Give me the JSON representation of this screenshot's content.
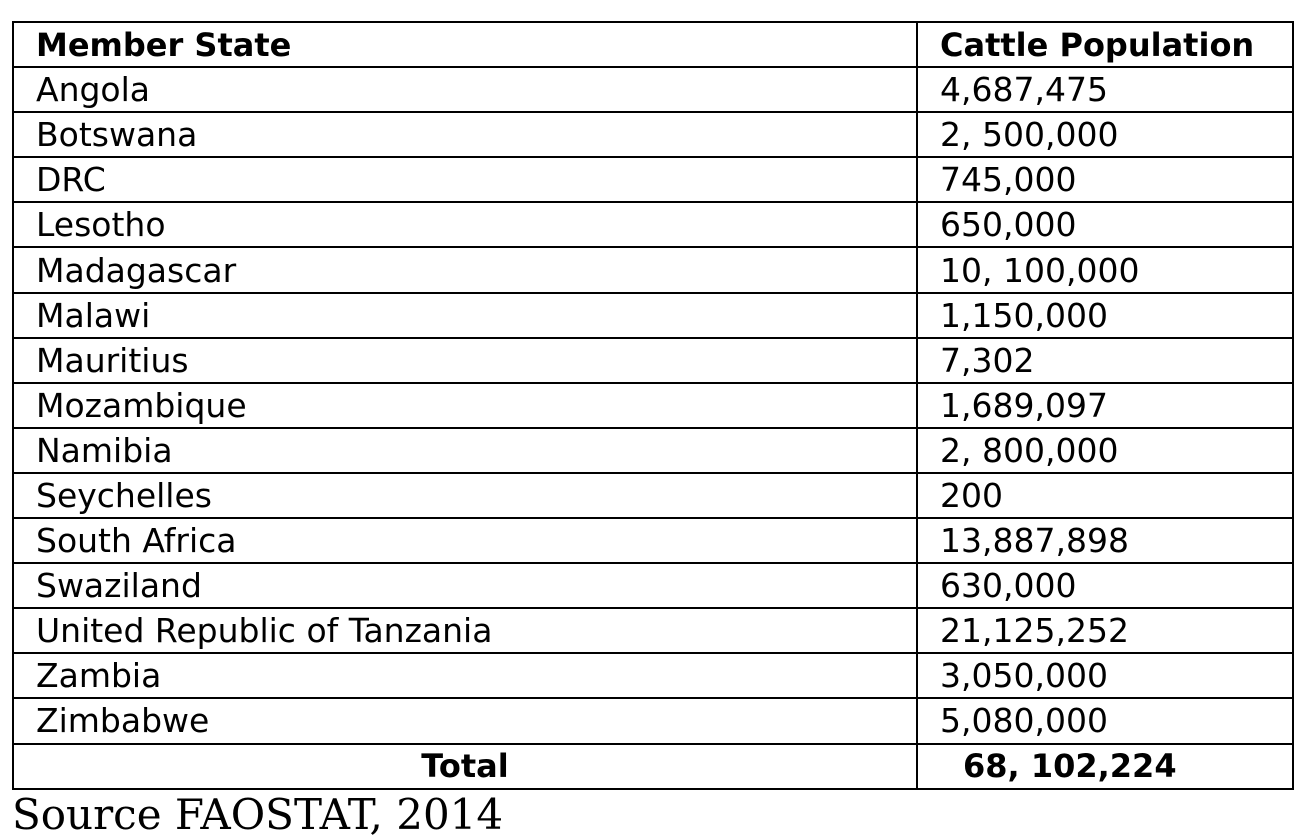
{
  "table": {
    "headers": [
      "Member State",
      "Cattle Population"
    ],
    "rows": [
      [
        "Angola",
        "4,687,475"
      ],
      [
        "Botswana",
        "2, 500,000"
      ],
      [
        "DRC",
        "745,000"
      ],
      [
        "Lesotho",
        "650,000"
      ],
      [
        "Madagascar",
        "10, 100,000"
      ],
      [
        "Malawi",
        "1,150,000"
      ],
      [
        "Mauritius",
        "7,302"
      ],
      [
        "Mozambique",
        "1,689,097"
      ],
      [
        "Namibia",
        "2, 800,000"
      ],
      [
        "Seychelles",
        "200"
      ],
      [
        "South Africa",
        "13,887,898"
      ],
      [
        "Swaziland",
        "630,000"
      ],
      [
        "United Republic of Tanzania",
        "21,125,252"
      ],
      [
        "Zambia",
        "3,050,000"
      ],
      [
        "Zimbabwe",
        "5,080,000"
      ]
    ],
    "total": {
      "label": "Total",
      "value": "68, 102,224"
    }
  },
  "source": "Source FAOSTAT, 2014"
}
